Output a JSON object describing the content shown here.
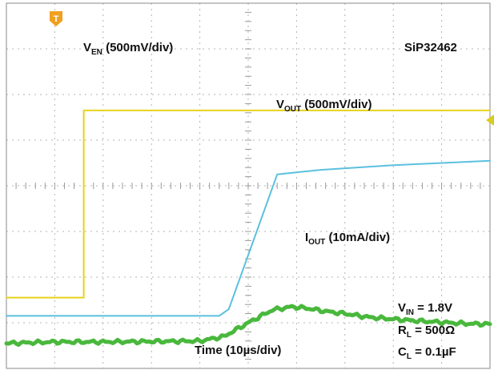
{
  "chart_data": {
    "type": "line",
    "title": "",
    "device": "SiP32462",
    "xlabel": "Time (10µs/div)",
    "x_unit_per_div": "10µs",
    "x_divisions": 10,
    "y_divisions": 8,
    "grid": true,
    "marker_glyph": "T",
    "series": [
      {
        "name_main": "V",
        "name_sub": "EN",
        "scale": "(500mV/div)",
        "color": "#e6d21e",
        "x_div": [
          0,
          1.6,
          1.6,
          10
        ],
        "y_div": [
          1.55,
          1.55,
          5.65,
          5.65
        ]
      },
      {
        "name_main": "V",
        "name_sub": "OUT",
        "scale": "(500mV/div)",
        "color": "#5bc0de",
        "x_div": [
          0,
          4.4,
          4.6,
          5.6,
          6.5,
          8,
          10
        ],
        "y_div": [
          1.15,
          1.15,
          1.3,
          4.25,
          4.35,
          4.45,
          4.55
        ]
      },
      {
        "name_main": "I",
        "name_sub": "OUT",
        "scale": "(10mA/div)",
        "color": "#49b83c",
        "x_div": [
          0,
          1,
          2,
          3,
          4,
          4.5,
          5,
          5.5,
          5.9,
          6.2,
          6.6,
          7,
          7.5,
          8,
          8.5,
          9,
          9.5,
          10
        ],
        "y_div": [
          0.55,
          0.58,
          0.58,
          0.59,
          0.6,
          0.7,
          1.0,
          1.28,
          1.35,
          1.32,
          1.25,
          1.2,
          1.12,
          1.08,
          1.04,
          1.01,
          0.98,
          0.97
        ]
      }
    ],
    "conditions": [
      {
        "main": "V",
        "sub": "IN",
        "value": " = 1.8V"
      },
      {
        "main": "R",
        "sub": "L",
        "value": " = 500Ω"
      },
      {
        "main": "C",
        "sub": "L",
        "value": " = 0.1µF"
      }
    ]
  }
}
